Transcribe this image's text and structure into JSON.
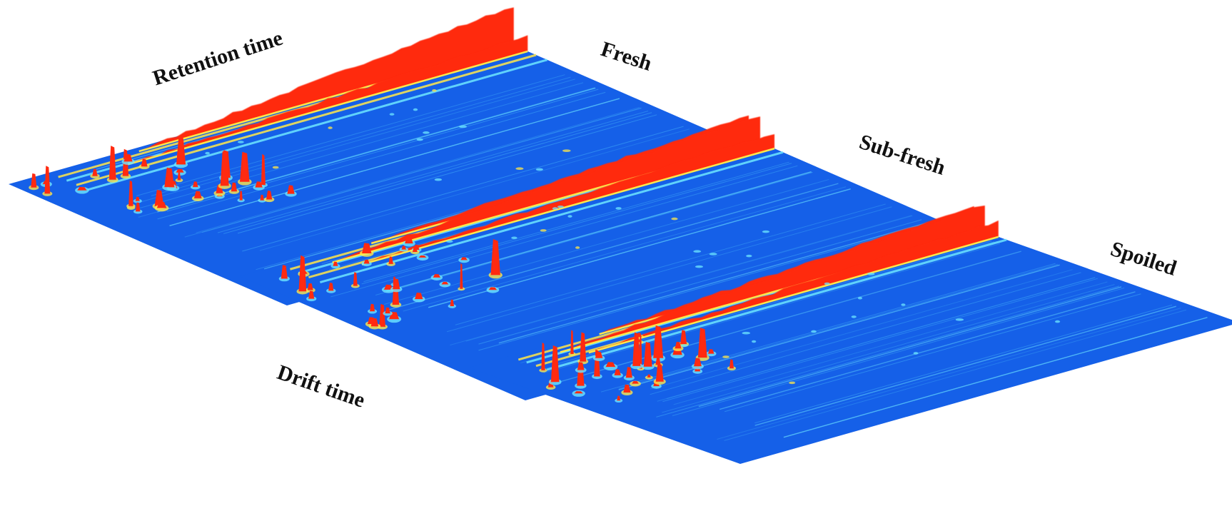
{
  "chart_data": {
    "type": "surface-3d",
    "title": "",
    "xlabel": "Retention time",
    "ylabel": "Drift time",
    "panels": [
      {
        "name": "Fresh"
      },
      {
        "name": "Sub-fresh"
      },
      {
        "name": "Spoiled"
      }
    ],
    "colormap": [
      "#1560e8",
      "#3aa0f5",
      "#6ee7ff",
      "#ffe74a",
      "#ff2a10"
    ],
    "grid": false,
    "legend": "none"
  }
}
